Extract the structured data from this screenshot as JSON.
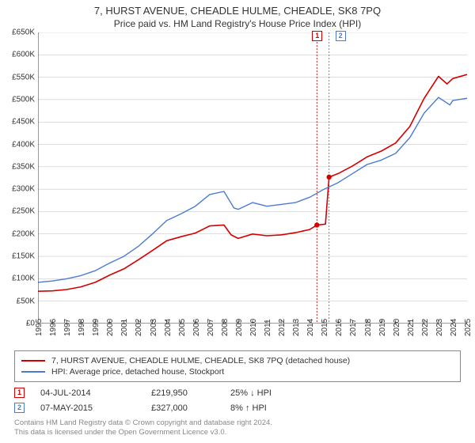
{
  "title": "7, HURST AVENUE, CHEADLE HULME, CHEADLE, SK8 7PQ",
  "subtitle": "Price paid vs. HM Land Registry's House Price Index (HPI)",
  "chart": {
    "type": "line",
    "background_color": "#ffffff",
    "grid_color": "#bbbbbb",
    "grid_width": 0.5,
    "axis_color": "#333333",
    "x": {
      "min": 1995,
      "max": 2025,
      "ticks": [
        1995,
        1996,
        1997,
        1998,
        1999,
        2000,
        2001,
        2002,
        2003,
        2004,
        2005,
        2006,
        2007,
        2008,
        2009,
        2010,
        2011,
        2012,
        2013,
        2014,
        2015,
        2016,
        2017,
        2018,
        2019,
        2020,
        2021,
        2022,
        2023,
        2024,
        2025
      ]
    },
    "y": {
      "min": 0,
      "max": 650000,
      "ticks": [
        0,
        50000,
        100000,
        150000,
        200000,
        250000,
        300000,
        350000,
        400000,
        450000,
        500000,
        550000,
        600000,
        650000
      ],
      "tick_labels": [
        "£0",
        "£50K",
        "£100K",
        "£150K",
        "£200K",
        "£250K",
        "£300K",
        "£350K",
        "£400K",
        "£450K",
        "£500K",
        "£550K",
        "£600K",
        "£650K"
      ]
    },
    "series": [
      {
        "id": "price_paid",
        "color": "#d40000",
        "width": 1.6,
        "label": "7, HURST AVENUE, CHEADLE HULME, CHEADLE, SK8 7PQ (detached house)",
        "points": [
          [
            1995,
            72000
          ],
          [
            1996,
            73000
          ],
          [
            1997,
            76000
          ],
          [
            1998,
            82000
          ],
          [
            1999,
            92000
          ],
          [
            2000,
            108000
          ],
          [
            2001,
            122000
          ],
          [
            2002,
            142000
          ],
          [
            2003,
            163000
          ],
          [
            2004,
            185000
          ],
          [
            2005,
            194000
          ],
          [
            2006,
            202000
          ],
          [
            2007,
            218000
          ],
          [
            2008,
            220000
          ],
          [
            2008.5,
            198000
          ],
          [
            2009,
            190000
          ],
          [
            2010,
            200000
          ],
          [
            2011,
            196000
          ],
          [
            2012,
            198000
          ],
          [
            2013,
            203000
          ],
          [
            2014,
            210000
          ],
          [
            2014.5,
            219950
          ],
          [
            2015.1,
            222000
          ],
          [
            2015.35,
            327000
          ],
          [
            2016,
            335000
          ],
          [
            2017,
            352000
          ],
          [
            2018,
            372000
          ],
          [
            2019,
            385000
          ],
          [
            2020,
            403000
          ],
          [
            2021,
            440000
          ],
          [
            2022,
            503000
          ],
          [
            2023,
            552000
          ],
          [
            2023.6,
            535000
          ],
          [
            2024,
            547000
          ],
          [
            2025,
            556000
          ]
        ]
      },
      {
        "id": "hpi",
        "color": "#4a7bd1",
        "width": 1.4,
        "label": "HPI: Average price, detached house, Stockport",
        "points": [
          [
            1995,
            92000
          ],
          [
            1996,
            95000
          ],
          [
            1997,
            100000
          ],
          [
            1998,
            107000
          ],
          [
            1999,
            118000
          ],
          [
            2000,
            135000
          ],
          [
            2001,
            150000
          ],
          [
            2002,
            172000
          ],
          [
            2003,
            200000
          ],
          [
            2004,
            230000
          ],
          [
            2005,
            245000
          ],
          [
            2006,
            262000
          ],
          [
            2007,
            288000
          ],
          [
            2008,
            295000
          ],
          [
            2008.7,
            258000
          ],
          [
            2009,
            255000
          ],
          [
            2010,
            270000
          ],
          [
            2011,
            262000
          ],
          [
            2012,
            266000
          ],
          [
            2013,
            270000
          ],
          [
            2014,
            282000
          ],
          [
            2015,
            300000
          ],
          [
            2016,
            315000
          ],
          [
            2017,
            335000
          ],
          [
            2018,
            355000
          ],
          [
            2019,
            365000
          ],
          [
            2020,
            380000
          ],
          [
            2021,
            415000
          ],
          [
            2022,
            470000
          ],
          [
            2023,
            505000
          ],
          [
            2023.8,
            488000
          ],
          [
            2024,
            498000
          ],
          [
            2025,
            503000
          ]
        ]
      }
    ],
    "transaction_markers": [
      {
        "n": "1",
        "x": 2014.5,
        "y": 219950,
        "line_color": "#d40000",
        "box_border": "#d40000",
        "box_text": "#d40000"
      },
      {
        "n": "2",
        "x": 2015.35,
        "y": 327000,
        "line_color": "#4a7bd1",
        "box_border": "#4a7bd1",
        "box_text": "#4a7bd1"
      }
    ],
    "marker_dot": {
      "color": "#d40000",
      "radius": 3.2
    },
    "label_fontsize": 10
  },
  "legend": [
    {
      "color": "#d40000",
      "text": "7, HURST AVENUE, CHEADLE HULME, CHEADLE, SK8 7PQ (detached house)"
    },
    {
      "color": "#4a7bd1",
      "text": "HPI: Average price, detached house, Stockport"
    }
  ],
  "transactions": [
    {
      "n": "1",
      "box_border": "#d40000",
      "box_text": "#d40000",
      "date": "04-JUL-2014",
      "price": "£219,950",
      "hpi": "25% ↓ HPI"
    },
    {
      "n": "2",
      "box_border": "#4a7bd1",
      "box_text": "#4a7bd1",
      "date": "07-MAY-2015",
      "price": "£327,000",
      "hpi": "8% ↑ HPI"
    }
  ],
  "footer_line1": "Contains HM Land Registry data © Crown copyright and database right 2024.",
  "footer_line2": "This data is licensed under the Open Government Licence v3.0."
}
